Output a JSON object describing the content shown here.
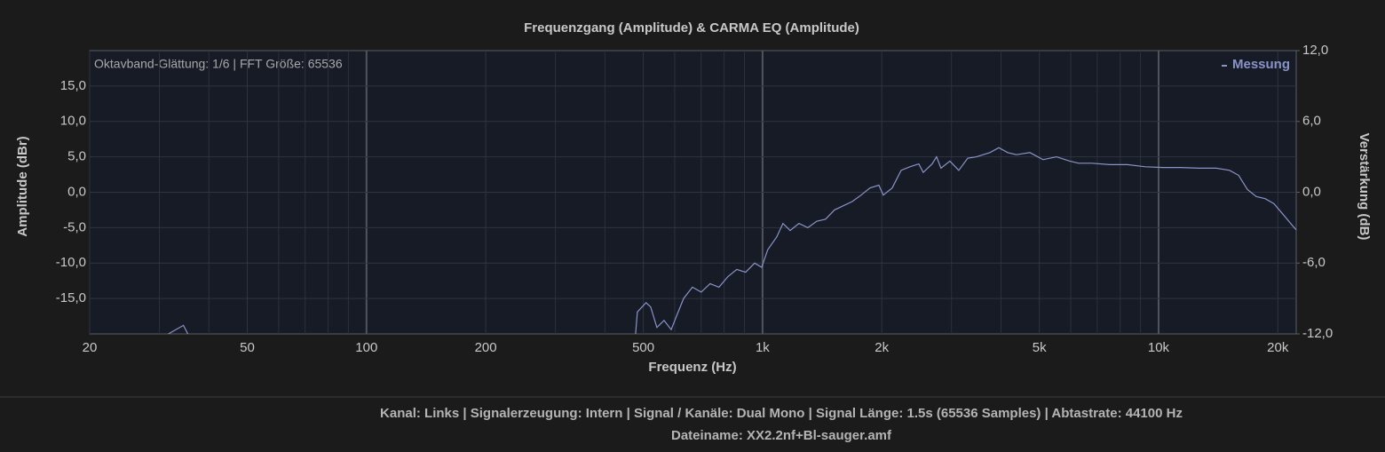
{
  "chart_data": {
    "type": "line",
    "title": "Frequenzgang (Amplitude) & CARMA EQ (Amplitude)",
    "annotation": "Oktavband-Glättung: 1/6 | FFT Größe: 65536",
    "xlabel": "Frequenz (Hz)",
    "ylabel": "Amplitude (dBr)",
    "y2label": "Verstärkung (dB)",
    "xscale": "log",
    "grid": true,
    "legend": "upper right",
    "xlim": [
      20,
      22260
    ],
    "ylim": [
      -20,
      20
    ],
    "y2lim": [
      -12,
      12
    ],
    "xticks": [
      20,
      50,
      100,
      200,
      500,
      {
        "value": 1000,
        "label": "1k"
      },
      {
        "value": 2000,
        "label": "2k"
      },
      {
        "value": 5000,
        "label": "5k"
      },
      {
        "value": 10000,
        "label": "10k"
      },
      {
        "value": 20000,
        "label": "20k"
      }
    ],
    "x_minor_grid": [
      30,
      40,
      60,
      70,
      80,
      90,
      300,
      400,
      600,
      700,
      800,
      900,
      3000,
      4000,
      6000,
      7000,
      8000,
      9000
    ],
    "yticks": [
      {
        "value": 15,
        "label": "15,0"
      },
      {
        "value": 10,
        "label": "10,0"
      },
      {
        "value": 5,
        "label": "5,0"
      },
      {
        "value": 0,
        "label": "0,0"
      },
      {
        "value": -5,
        "label": "-5,0"
      },
      {
        "value": -10,
        "label": "-10,0"
      },
      {
        "value": -15,
        "label": "-15,0"
      }
    ],
    "y2ticks": [
      {
        "value": 12,
        "label": "12,0"
      },
      {
        "value": 6,
        "label": "6,0"
      },
      {
        "value": 0,
        "label": "0,0"
      },
      {
        "value": -6,
        "label": "-6,0"
      },
      {
        "value": -12,
        "label": "-12,0"
      }
    ],
    "series": [
      {
        "name": "Messung",
        "color": "#8a93c8",
        "x": [
          31.6,
          34.5,
          35.4,
          100,
          478,
          483,
          508,
          522,
          541,
          564,
          588,
          606,
          632,
          665,
          700,
          737,
          776,
          818,
          861,
          906,
          955,
          995,
          1031,
          1086,
          1126,
          1174,
          1236,
          1301,
          1370,
          1443,
          1519,
          1600,
          1685,
          1774,
          1868,
          1967,
          2018,
          2125,
          2238,
          2356,
          2481,
          2546,
          2681,
          2751,
          2822,
          2972,
          3130,
          3296,
          3470,
          3750,
          3949,
          4158,
          4378,
          4731,
          5111,
          5524,
          5969,
          6285,
          6791,
          7529,
          8347,
          9256,
          10260,
          11380,
          12620,
          13990,
          15110,
          15920,
          16760,
          17650,
          18580,
          19560,
          20600,
          21700,
          22260
        ],
        "values": [
          -20,
          -18.8,
          -20,
          null,
          -20,
          -16.9,
          -15.6,
          -16.2,
          -19.1,
          -18.1,
          -19.4,
          -17.5,
          -15,
          -13.4,
          -14.1,
          -12.9,
          -13.4,
          -11.9,
          -10.9,
          -11.3,
          -10,
          -10.6,
          -8.1,
          -6.3,
          -4.4,
          -5.4,
          -4.4,
          -5,
          -4.1,
          -3.8,
          -2.5,
          -1.9,
          -1.3,
          -0.4,
          0.6,
          1,
          -0.4,
          0.6,
          3.1,
          3.6,
          4,
          2.8,
          4,
          5,
          3.4,
          4.4,
          3.1,
          4.8,
          5,
          5.6,
          6.3,
          5.6,
          5.3,
          5.6,
          4.6,
          5,
          4.4,
          4.1,
          4.1,
          3.9,
          3.9,
          3.6,
          3.5,
          3.5,
          3.4,
          3.4,
          3.1,
          2.4,
          0.4,
          -0.6,
          -0.9,
          -1.6,
          -3.1,
          -4.6,
          -5.3
        ]
      }
    ]
  },
  "footer": {
    "info": "Kanal: Links  |  Signalerzeugung: Intern  |  Signal / Kanäle: Dual Mono  |  Signal Länge: 1.5s (65536 Samples)  |  Abtastrate: 44100 Hz",
    "filename": "Dateiname: XX2.2nf+Bl-sauger.amf"
  }
}
